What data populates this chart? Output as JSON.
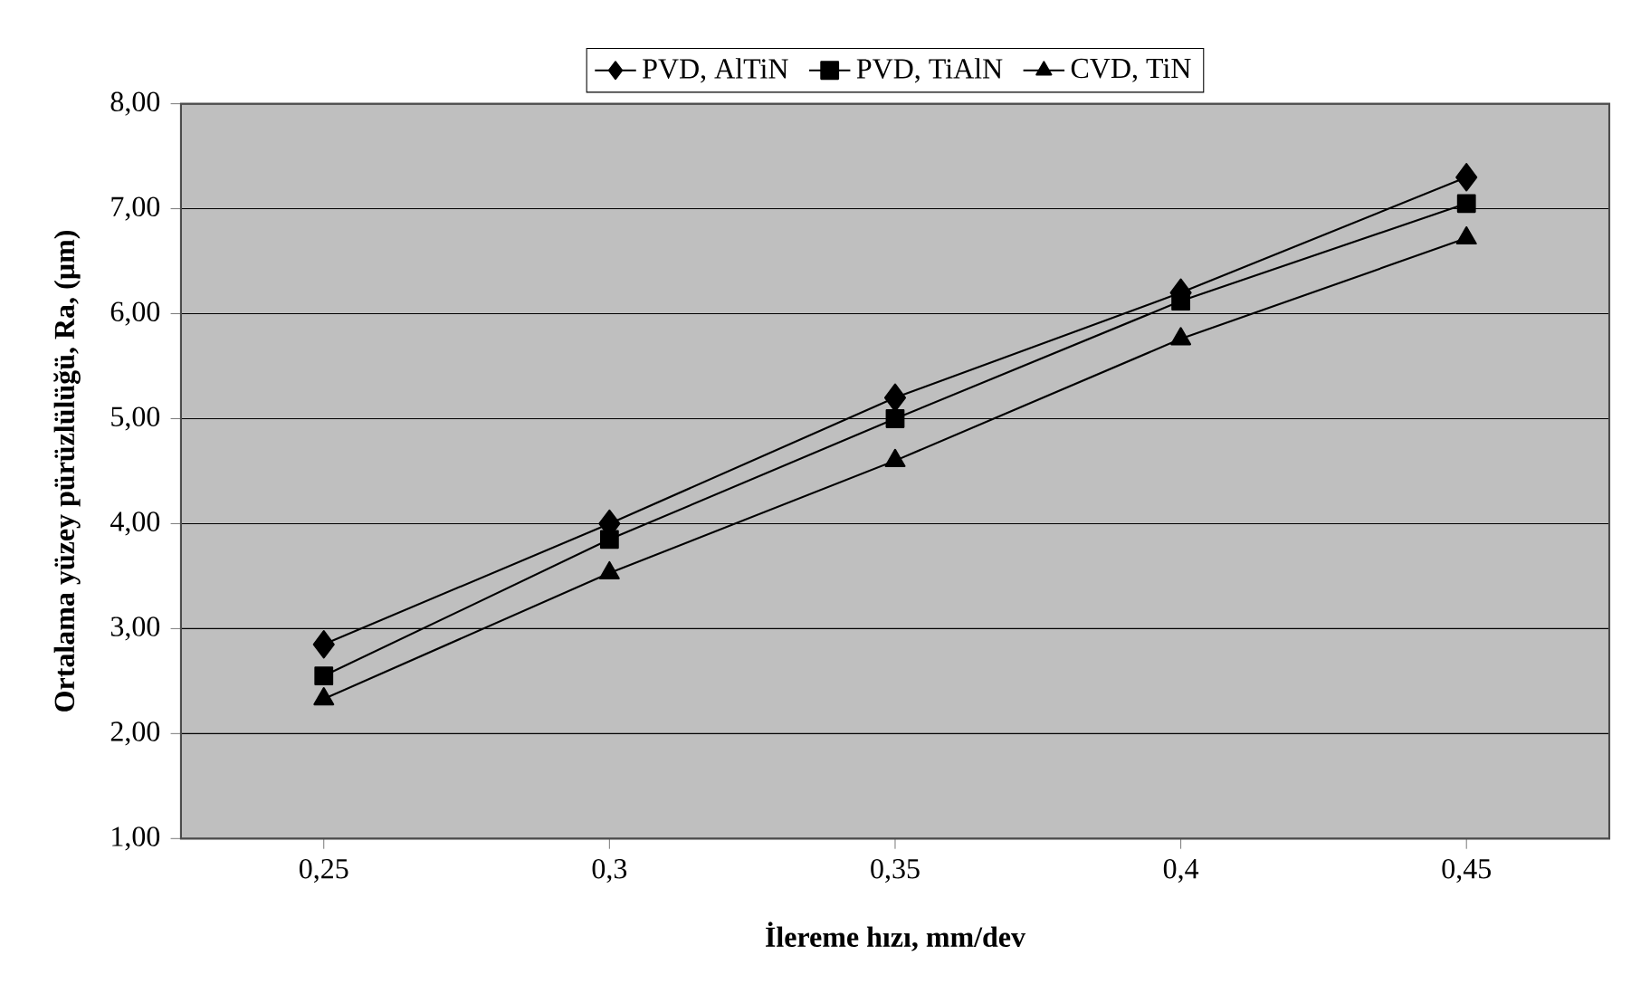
{
  "chart_data": {
    "type": "line",
    "xlabel": "İlereme hızı, mm/dev",
    "ylabel": "Ortalama yüzey pürüzlülüğü, Ra, (µm)",
    "categories": [
      "0,25",
      "0,3",
      "0,35",
      "0,4",
      "0,45"
    ],
    "series": [
      {
        "name": "PVD, AlTiN",
        "color": "#000000",
        "marker": "diamond",
        "values": [
          2.85,
          4.0,
          5.2,
          6.2,
          7.3
        ]
      },
      {
        "name": "PVD, TiAlN",
        "color": "#000000",
        "marker": "square",
        "values": [
          2.55,
          3.85,
          5.0,
          6.12,
          7.05
        ]
      },
      {
        "name": "CVD, TiN",
        "color": "#000000",
        "marker": "triangle",
        "values": [
          2.33,
          3.53,
          4.6,
          5.76,
          6.72
        ]
      }
    ],
    "ylim": [
      1,
      8
    ],
    "yticks": [
      {
        "value": 1,
        "label": "1,00"
      },
      {
        "value": 2,
        "label": "2,00"
      },
      {
        "value": 3,
        "label": "3,00"
      },
      {
        "value": 4,
        "label": "4,00"
      },
      {
        "value": 5,
        "label": "5,00"
      },
      {
        "value": 6,
        "label": "6,00"
      },
      {
        "value": 7,
        "label": "7,00"
      },
      {
        "value": 8,
        "label": "8,00"
      }
    ],
    "grid": "y",
    "legend": "top",
    "line_style": "solid"
  }
}
